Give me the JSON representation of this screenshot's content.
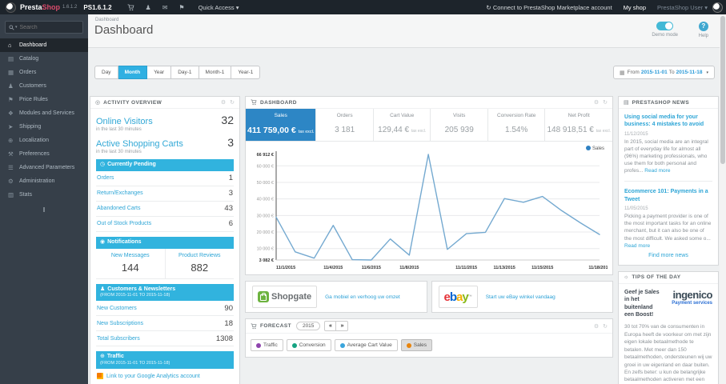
{
  "colors": {
    "accent_blue": "#2da5d6",
    "section_header_blue": "#31b3de",
    "active_kpi_blue": "#2d86c5",
    "active_range_blue": "#30b0e2",
    "chart_line": "#74a9d0",
    "legend_dot": "#2f81c2",
    "traffic_dot": "#8e44ad",
    "conversion_dot": "#15a382",
    "avg_cart_dot": "#3aa5dc",
    "sales_dot": "#e8840c"
  },
  "icons": {
    "search_caret": "▾",
    "person": "♟",
    "mail": "✉",
    "pin": "⚑",
    "marketplace": "↻",
    "quick_caret": "▾",
    "user_caret": "▾",
    "gear": "⚙",
    "refresh": "↻",
    "activity": "◎",
    "clock": "◷",
    "bell": "◉",
    "group": "♟",
    "globe": "⊕",
    "news": "▤",
    "bulb": "☼",
    "calendar": "▦",
    "arrows_left": "«",
    "arrows_right": "»",
    "collapse": "‖",
    "help": "?"
  },
  "topbar": {
    "brand_presta": "Presta",
    "brand_shop": "Shop",
    "version": "1.6.1.2",
    "ps_version": "PS1.6.1.2",
    "quick_access": "Quick Access",
    "marketplace": "Connect to PrestaShop Marketplace account",
    "my_shop": "My shop",
    "user": "PrestaShop User"
  },
  "sidebar": {
    "search_placeholder": "Search",
    "items": [
      {
        "icon": "⌂",
        "label": "Dashboard"
      },
      {
        "icon": "▤",
        "label": "Catalog"
      },
      {
        "icon": "▦",
        "label": "Orders"
      },
      {
        "icon": "♟",
        "label": "Customers"
      },
      {
        "icon": "⚑",
        "label": "Price Rules"
      },
      {
        "icon": "❖",
        "label": "Modules and Services"
      },
      {
        "icon": "➤",
        "label": "Shipping"
      },
      {
        "icon": "⊕",
        "label": "Localization"
      },
      {
        "icon": "⚒",
        "label": "Preferences"
      },
      {
        "icon": "☰",
        "label": "Advanced Parameters"
      },
      {
        "icon": "⚙",
        "label": "Administration"
      },
      {
        "icon": "▥",
        "label": "Stats"
      }
    ]
  },
  "header": {
    "breadcrumb": "Dashboard",
    "title": "Dashboard",
    "demo_mode": "Demo mode",
    "help": "Help"
  },
  "toolbar": {
    "ranges": [
      "Day",
      "Month",
      "Year",
      "Day-1",
      "Month-1",
      "Year-1"
    ],
    "active_range": "Month",
    "from_label": "From",
    "date_from": "2015-11-01",
    "to_label": "To",
    "date_to": "2015-11-18"
  },
  "activity": {
    "title": "ACTIVITY OVERVIEW",
    "online_visitors_label": "Online Visitors",
    "online_visitors": "32",
    "last30": "in the last 30 minutes",
    "carts_label": "Active Shopping Carts",
    "carts": "3",
    "pending_title": "Currently Pending",
    "pending_rows": [
      [
        "Orders",
        "1"
      ],
      [
        "Return/Exchanges",
        "3"
      ],
      [
        "Abandoned Carts",
        "43"
      ],
      [
        "Out of Stock Products",
        "6"
      ]
    ],
    "notifications_title": "Notifications",
    "notif_cols": [
      [
        "New Messages",
        "144"
      ],
      [
        "Product Reviews",
        "882"
      ]
    ],
    "customers_title": "Customers & Newsletters",
    "customers_range": "(FROM 2015-11-01 TO 2015-11-18)",
    "customers_rows": [
      [
        "New Customers",
        "90"
      ],
      [
        "New Subscriptions",
        "18"
      ],
      [
        "Total Subscribers",
        "1308"
      ]
    ],
    "traffic_title": "Traffic",
    "traffic_range": "(FROM 2015-11-01 TO 2015-11-18)",
    "ga_link": "Link to your Google Analytics account"
  },
  "dashboard_panel": {
    "title": "DASHBOARD",
    "kpis": [
      {
        "label": "Sales",
        "value": "411 759,00 €",
        "note": "tax excl."
      },
      {
        "label": "Orders",
        "value": "3 181",
        "note": ""
      },
      {
        "label": "Cart Value",
        "value": "129,44 €",
        "note": "tax excl."
      },
      {
        "label": "Visits",
        "value": "205 939",
        "note": ""
      },
      {
        "label": "Conversion Rate",
        "value": "1.54%",
        "note": ""
      },
      {
        "label": "Net Profit",
        "value": "148 918,51 €",
        "note": "tax excl."
      }
    ],
    "active_kpi": "Sales",
    "legend": "Sales"
  },
  "chart_data": {
    "type": "line",
    "title": "Sales",
    "x": [
      "11/1/2015",
      "11/2/2015",
      "11/3/2015",
      "11/4/2015",
      "11/5/2015",
      "11/6/2015",
      "11/7/2015",
      "11/8/2015",
      "11/9/2015",
      "11/10/2015",
      "11/11/2015",
      "11/12/2015",
      "11/13/2015",
      "11/14/2015",
      "11/15/2015",
      "11/16/2015",
      "11/17/2015",
      "11/18/2015"
    ],
    "series": [
      {
        "name": "Sales",
        "values": [
          29000,
          8000,
          4200,
          24000,
          3300,
          3082,
          15800,
          6000,
          66912,
          9500,
          19000,
          19800,
          40200,
          38000,
          41500,
          33000,
          25500,
          18500
        ]
      }
    ],
    "ylim": [
      3082,
      66912
    ],
    "yticks": [
      {
        "value": 3082,
        "label": "3 082 €",
        "bold": true
      },
      {
        "value": 10000,
        "label": "10 000 €",
        "bold": false
      },
      {
        "value": 20000,
        "label": "20 000 €",
        "bold": false
      },
      {
        "value": 30000,
        "label": "30 000 €",
        "bold": false
      },
      {
        "value": 40000,
        "label": "40 000 €",
        "bold": false
      },
      {
        "value": 50000,
        "label": "50 000 €",
        "bold": false
      },
      {
        "value": 60000,
        "label": "60 000 €",
        "bold": false
      },
      {
        "value": 66912,
        "label": "66 912 €",
        "bold": true
      }
    ],
    "xtick_indices": [
      0,
      3,
      5,
      7,
      10,
      12,
      14,
      17
    ],
    "grid": true,
    "legend_position": "top-right"
  },
  "banners": {
    "shopgate_logo": "Shopgate",
    "shopgate_link": "Ga mobiel en verhoog uw omzet",
    "ebay_link": "Start uw eBay winkel vandaag"
  },
  "forecast": {
    "title": "FORECAST",
    "year": "2015",
    "toggles": [
      "Traffic",
      "Conversion",
      "Average Cart Value",
      "Sales"
    ],
    "active_toggle": "Sales"
  },
  "news": {
    "title": "PRESTASHOP NEWS",
    "articles": [
      {
        "title": "Using social media for your business: 4 mistakes to avoid",
        "date": "11/12/2015",
        "excerpt": "In 2015, social media are an integral part of everyday life for almost all (96%) marketing professionals, who use them for both personal and profes... ",
        "read_more": "Read more"
      },
      {
        "title": "Ecommerce 101: Payments in a Tweet",
        "date": "11/05/2015",
        "excerpt": "Picking a payment provider is one of the most important tasks for an online merchant, but it can also be one of the most difficult. We asked some o... ",
        "read_more": "Read more"
      }
    ],
    "find_more": "Find more news"
  },
  "tips": {
    "title": "TIPS OF THE DAY",
    "headline": "Geef je Sales in het buitenland een Boost!",
    "logo_main": "ingenico",
    "logo_sub": "Payment services",
    "body": "30 tot 70% van de consumenten in Europa heeft de voorkeur om met zijn eigen lokale betaalmethode te betalen. Met meer dan 150 betaalmethoden, ondersteunen wij uw groei in uw eigenland en daar buiten. En zelfs beter: u kun de belangrijke betaalmethoden activeren met een"
  }
}
